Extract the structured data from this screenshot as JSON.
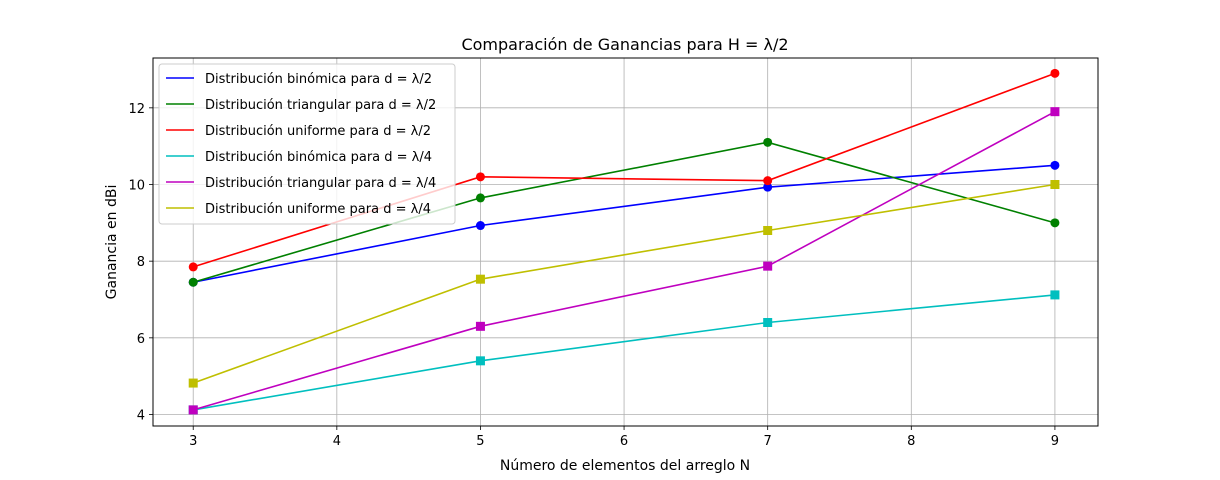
{
  "chart_data": {
    "type": "line",
    "title": "Comparación de Ganancias para H = λ/2",
    "xlabel": "Número de elementos del arreglo N",
    "ylabel": "Ganancia en dBi",
    "xlim": [
      2.72,
      9.3
    ],
    "ylim": [
      3.7,
      13.3
    ],
    "xticks": [
      "3",
      "4",
      "5",
      "6",
      "7",
      "8",
      "9"
    ],
    "yticks": [
      "4",
      "6",
      "8",
      "10",
      "12"
    ],
    "grid": true,
    "legend_position": "top-left",
    "x": [
      3,
      5,
      7,
      9
    ],
    "series": [
      {
        "name": "Distribución binómica para d = λ/2",
        "color": "#0000ff",
        "marker": "circle",
        "values": [
          7.45,
          8.93,
          9.93,
          10.5
        ]
      },
      {
        "name": "Distribución triangular para d = λ/2",
        "color": "#008000",
        "marker": "circle",
        "values": [
          7.45,
          9.65,
          11.1,
          9.0
        ]
      },
      {
        "name": "Distribución uniforme para d = λ/2",
        "color": "#ff0000",
        "marker": "circle",
        "values": [
          7.85,
          10.2,
          10.1,
          12.9
        ]
      },
      {
        "name": "Distribución binómica para d = λ/4",
        "color": "#00bfbf",
        "marker": "square",
        "values": [
          4.12,
          5.4,
          6.4,
          7.12
        ]
      },
      {
        "name": "Distribución triangular para d = λ/4",
        "color": "#bf00bf",
        "marker": "square",
        "values": [
          4.12,
          6.3,
          7.87,
          11.9
        ]
      },
      {
        "name": "Distribución uniforme para d = λ/4",
        "color": "#bfbf00",
        "marker": "square",
        "values": [
          4.82,
          7.53,
          8.8,
          10.0
        ]
      }
    ]
  }
}
